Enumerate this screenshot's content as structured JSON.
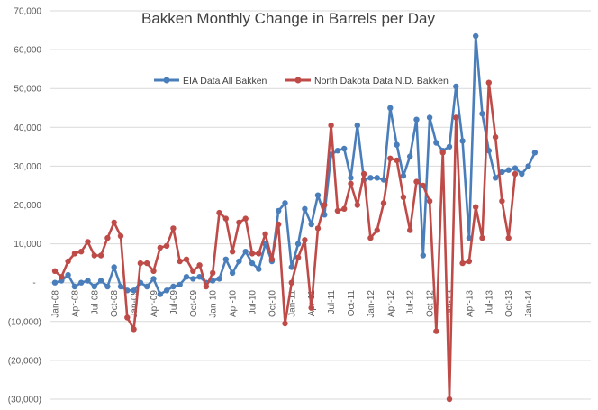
{
  "chart_data": {
    "type": "line",
    "title": "Bakken Monthly Change in Barrels per Day",
    "xlabel": "",
    "ylabel": "",
    "ylim": [
      -30000,
      70000
    ],
    "ytick_values": [
      -30000,
      -20000,
      -10000,
      0,
      10000,
      20000,
      30000,
      40000,
      50000,
      60000,
      70000
    ],
    "ytick_labels": [
      "(30,000)",
      "(20,000)",
      "(10,000)",
      "-",
      "10,000",
      "20,000",
      "30,000",
      "40,000",
      "50,000",
      "60,000",
      "70,000"
    ],
    "xtick_labels": [
      "Jan-08",
      "Apr-08",
      "Jul-08",
      "Oct-08",
      "Jan-09",
      "Apr-09",
      "Jul-09",
      "Oct-09",
      "Jan-10",
      "Apr-10",
      "Jul-10",
      "Oct-10",
      "Jan-11",
      "Apr-11",
      "Jul-11",
      "Oct-11",
      "Jan-12",
      "Apr-12",
      "Jul-12",
      "Oct-12",
      "Jan-13",
      "Apr-13",
      "Jul-13",
      "Oct-13",
      "Jan-14"
    ],
    "xtick_every_months": 3,
    "grid": true,
    "legend_position": "top-center",
    "series": [
      {
        "name": "EIA Data All Bakken",
        "color": "#4a7ebb",
        "values": [
          0,
          500,
          2000,
          -1000,
          0,
          500,
          -1000,
          500,
          -1000,
          4000,
          -1000,
          -2000,
          -2000,
          0,
          -1000,
          1000,
          -3000,
          -2000,
          -1000,
          -500,
          1500,
          1000,
          1500,
          0,
          500,
          1000,
          6000,
          2500,
          5500,
          8000,
          5000,
          3500,
          10000,
          5500,
          18500,
          20500,
          4000,
          10000,
          19000,
          15000,
          22500,
          17500,
          33000,
          34000,
          34500,
          27000,
          40500,
          26500,
          27000,
          27000,
          26500,
          45000,
          35500,
          27500,
          32500,
          42000,
          7000,
          42500,
          36000,
          34000,
          35000,
          50500,
          36500,
          11500,
          63500,
          43500,
          34000,
          27000,
          28500,
          29000,
          29500,
          28000,
          30000,
          33500
        ]
      },
      {
        "name": "North Dakota Data N.D. Bakken",
        "color": "#be4b48",
        "values": [
          3000,
          1500,
          5500,
          7500,
          8000,
          10500,
          7000,
          7000,
          11500,
          15500,
          12000,
          -9000,
          -12000,
          5000,
          5000,
          3000,
          9000,
          9500,
          14000,
          5500,
          6000,
          3000,
          4500,
          -1000,
          2500,
          18000,
          16500,
          8000,
          15500,
          16500,
          7500,
          7500,
          12500,
          6000,
          15000,
          -10500,
          0,
          6500,
          11000,
          -6500,
          14000,
          20000,
          40500,
          18500,
          19000,
          25500,
          20000,
          28000,
          11500,
          13500,
          20500,
          32000,
          31500,
          22000,
          13500,
          26000,
          25000,
          21000,
          -12500,
          33500,
          -30000,
          42500,
          5000,
          5500,
          19500,
          11500,
          51500,
          37500,
          21000,
          11500,
          28000
        ]
      }
    ]
  }
}
